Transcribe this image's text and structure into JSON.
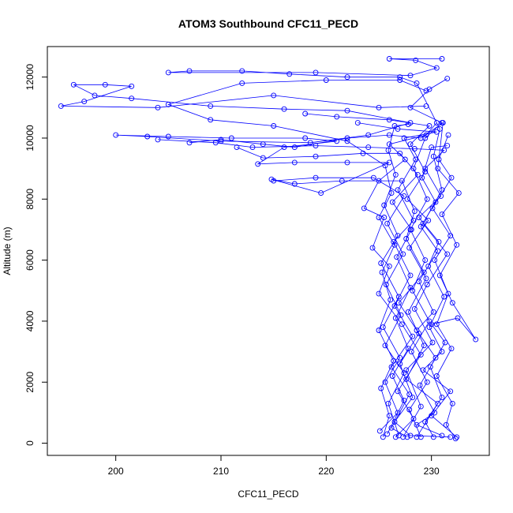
{
  "chart_data": {
    "type": "line",
    "title": "ATOM3 Southbound CFC11_PECD",
    "xlabel": "CFC11_PECD",
    "ylabel": "Altitude (m)",
    "xlim": [
      193.5,
      235.5
    ],
    "ylim": [
      -400,
      13000
    ],
    "xticks": [
      200,
      210,
      220,
      230
    ],
    "yticks": [
      0,
      2000,
      4000,
      6000,
      8000,
      10000,
      12000
    ],
    "grid": false,
    "legend": "none",
    "series_color": "#0000ff",
    "point_marker": "open-circle",
    "series": [
      {
        "values": [
          [
            231.8,
            200
          ],
          [
            228.0,
            250
          ],
          [
            226.5,
            700
          ],
          [
            228.2,
            1500
          ],
          [
            227.0,
            2600
          ],
          [
            228.8,
            3600
          ],
          [
            226.9,
            4600
          ],
          [
            229.3,
            5600
          ],
          [
            227.6,
            6700
          ],
          [
            228.4,
            7600
          ],
          [
            227.2,
            8600
          ],
          [
            221.5,
            8600
          ],
          [
            217.0,
            8500
          ],
          [
            214.8,
            8650
          ],
          [
            219.5,
            8200
          ],
          [
            226.0,
            9200
          ],
          [
            222.0,
            9200
          ],
          [
            217.0,
            9200
          ],
          [
            213.5,
            9150
          ],
          [
            216.0,
            9700
          ],
          [
            221.0,
            9900
          ],
          [
            218.0,
            10000
          ],
          [
            211.0,
            10000
          ],
          [
            205.0,
            10050
          ],
          [
            200.0,
            10100
          ],
          [
            203.0,
            10050
          ],
          [
            210.0,
            9900
          ],
          [
            218.5,
            9850
          ],
          [
            224.0,
            10100
          ],
          [
            228.0,
            10500
          ],
          [
            222.0,
            10900
          ],
          [
            216.0,
            10950
          ],
          [
            209.0,
            11050
          ],
          [
            201.5,
            11300
          ],
          [
            198.0,
            11400
          ],
          [
            196.0,
            11750
          ],
          [
            199.0,
            11750
          ],
          [
            201.5,
            11700
          ],
          [
            197.0,
            11200
          ],
          [
            194.8,
            11050
          ],
          [
            204.0,
            11000
          ],
          [
            215.0,
            11400
          ],
          [
            225.0,
            11000
          ],
          [
            229.5,
            11050
          ]
        ]
      },
      {
        "values": [
          [
            227.3,
            200
          ],
          [
            229.0,
            1200
          ],
          [
            227.6,
            2400
          ],
          [
            230.1,
            3300
          ],
          [
            228.4,
            4400
          ],
          [
            229.6,
            5200
          ],
          [
            231.5,
            6200
          ],
          [
            229.2,
            7200
          ],
          [
            231.0,
            8300
          ],
          [
            230.2,
            9400
          ],
          [
            230.8,
            10300
          ],
          [
            228.6,
            11800
          ],
          [
            227.0,
            12000
          ],
          [
            222.0,
            12000
          ],
          [
            216.5,
            12100
          ],
          [
            212.0,
            12200
          ],
          [
            207.0,
            12200
          ],
          [
            205.0,
            12150
          ],
          [
            219.0,
            12150
          ],
          [
            228.0,
            12050
          ],
          [
            230.5,
            12300
          ],
          [
            228.5,
            12550
          ],
          [
            226.0,
            12600
          ],
          [
            231.0,
            12600
          ]
        ]
      },
      {
        "values": [
          [
            225.4,
            200
          ],
          [
            226.0,
            900
          ],
          [
            225.2,
            1800
          ],
          [
            226.4,
            2700
          ],
          [
            225.0,
            3700
          ],
          [
            226.1,
            4700
          ],
          [
            225.3,
            5600
          ],
          [
            226.5,
            6500
          ],
          [
            225.0,
            7400
          ],
          [
            226.2,
            8200
          ],
          [
            225.6,
            9100
          ],
          [
            222.0,
            9900
          ],
          [
            215.0,
            10400
          ],
          [
            209.0,
            10600
          ],
          [
            205.0,
            11100
          ],
          [
            212.0,
            11800
          ],
          [
            220.0,
            11900
          ],
          [
            227.0,
            11900
          ],
          [
            229.5,
            11550
          ]
        ]
      },
      {
        "values": [
          [
            230.2,
            200
          ],
          [
            229.4,
            700
          ],
          [
            231.0,
            1500
          ],
          [
            229.9,
            2500
          ],
          [
            231.3,
            3300
          ],
          [
            230.0,
            3900
          ],
          [
            232.5,
            4100
          ],
          [
            234.2,
            3400
          ],
          [
            232.0,
            4600
          ],
          [
            230.8,
            5500
          ],
          [
            232.4,
            6500
          ],
          [
            231.0,
            7500
          ],
          [
            232.6,
            8200
          ],
          [
            230.6,
            9000
          ],
          [
            231.1,
            10500
          ],
          [
            229.0,
            10000
          ],
          [
            226.0,
            10100
          ],
          [
            222.0,
            10000
          ],
          [
            217.0,
            9700
          ],
          [
            214.0,
            9800
          ],
          [
            210.0,
            9950
          ],
          [
            207.0,
            9850
          ]
        ]
      },
      {
        "values": [
          [
            226.6,
            200
          ],
          [
            228.3,
            800
          ],
          [
            226.8,
            1700
          ],
          [
            229.0,
            2900
          ],
          [
            227.2,
            3900
          ],
          [
            225.0,
            4900
          ],
          [
            226.0,
            5800
          ],
          [
            224.4,
            6400
          ],
          [
            225.5,
            7400
          ],
          [
            223.6,
            7700
          ],
          [
            225.0,
            8600
          ],
          [
            227.5,
            9300
          ],
          [
            226.0,
            9800
          ],
          [
            229.5,
            10100
          ],
          [
            230.5,
            10500
          ]
        ]
      },
      {
        "values": [
          [
            232.4,
            200
          ],
          [
            230.0,
            900
          ],
          [
            231.8,
            1700
          ],
          [
            229.2,
            2400
          ],
          [
            231.0,
            3000
          ],
          [
            229.8,
            3800
          ],
          [
            231.2,
            4800
          ],
          [
            229.7,
            5800
          ],
          [
            230.7,
            6600
          ],
          [
            228.8,
            7400
          ],
          [
            230.9,
            8100
          ],
          [
            229.4,
            9000
          ],
          [
            231.2,
            9600
          ],
          [
            228.4,
            9650
          ],
          [
            224.0,
            9700
          ],
          [
            219.0,
            9750
          ],
          [
            213.0,
            9700
          ],
          [
            209.5,
            9850
          ],
          [
            204.0,
            9950
          ]
        ]
      },
      {
        "values": [
          [
            225.8,
            300
          ],
          [
            227.4,
            1400
          ],
          [
            226.3,
            2200
          ],
          [
            227.8,
            3100
          ],
          [
            226.6,
            4100
          ],
          [
            228.0,
            5100
          ],
          [
            226.7,
            6100
          ],
          [
            228.1,
            7000
          ],
          [
            226.3,
            7900
          ],
          [
            228.7,
            8800
          ],
          [
            227.0,
            9500
          ],
          [
            223.5,
            9500
          ],
          [
            219.0,
            9400
          ],
          [
            214.0,
            9350
          ],
          [
            211.5,
            9700
          ]
        ]
      },
      {
        "values": [
          [
            229.0,
            200
          ],
          [
            227.9,
            1100
          ],
          [
            229.6,
            2000
          ],
          [
            228.1,
            3000
          ],
          [
            229.8,
            4000
          ],
          [
            228.2,
            5000
          ],
          [
            229.4,
            6000
          ],
          [
            228.0,
            7000
          ],
          [
            229.6,
            8000
          ],
          [
            228.3,
            9000
          ],
          [
            229.4,
            10000
          ],
          [
            231.0,
            10500
          ],
          [
            228.0,
            11000
          ],
          [
            229.8,
            11600
          ],
          [
            231.5,
            11950
          ]
        ]
      },
      {
        "values": [
          [
            226.9,
            250
          ],
          [
            225.9,
            1300
          ],
          [
            227.4,
            2300
          ],
          [
            225.6,
            3200
          ],
          [
            227.1,
            4200
          ],
          [
            225.7,
            5200
          ],
          [
            227.3,
            6200
          ],
          [
            225.8,
            7200
          ],
          [
            227.4,
            8100
          ],
          [
            224.5,
            8700
          ],
          [
            219.0,
            8700
          ],
          [
            215.0,
            8600
          ]
        ]
      },
      {
        "values": [
          [
            231.0,
            250
          ],
          [
            228.6,
            600
          ],
          [
            230.3,
            1000
          ],
          [
            228.9,
            1900
          ],
          [
            230.4,
            2800
          ],
          [
            228.6,
            3700
          ],
          [
            230.2,
            4300
          ],
          [
            228.8,
            5300
          ],
          [
            230.6,
            6300
          ],
          [
            229.0,
            7100
          ],
          [
            230.4,
            7900
          ],
          [
            229.1,
            8700
          ],
          [
            230.0,
            9700
          ],
          [
            231.5,
            9750
          ]
        ]
      },
      {
        "values": [
          [
            227.7,
            200
          ],
          [
            226.2,
            500
          ],
          [
            227.9,
            1600
          ],
          [
            226.2,
            2500
          ],
          [
            228.2,
            3500
          ],
          [
            226.5,
            4500
          ],
          [
            228.0,
            5500
          ],
          [
            226.4,
            6600
          ],
          [
            228.3,
            7300
          ],
          [
            226.8,
            8300
          ],
          [
            228.5,
            9300
          ],
          [
            227.4,
            10000
          ],
          [
            230.5,
            10200
          ],
          [
            226.8,
            10300
          ],
          [
            223.0,
            10500
          ]
        ]
      },
      {
        "values": [
          [
            228.6,
            200
          ],
          [
            230.6,
            1300
          ],
          [
            227.6,
            2100
          ],
          [
            229.3,
            3200
          ],
          [
            227.8,
            4300
          ],
          [
            229.5,
            5400
          ],
          [
            227.9,
            6400
          ],
          [
            229.7,
            7300
          ],
          [
            227.7,
            8000
          ],
          [
            229.4,
            8900
          ],
          [
            228.0,
            9800
          ],
          [
            229.8,
            10400
          ],
          [
            226.0,
            10600
          ],
          [
            221.0,
            10700
          ],
          [
            218.0,
            10800
          ]
        ]
      },
      {
        "values": [
          [
            225.1,
            400
          ],
          [
            226.8,
            1000
          ],
          [
            225.6,
            2000
          ],
          [
            227.0,
            2800
          ],
          [
            225.4,
            3800
          ],
          [
            226.9,
            4800
          ],
          [
            225.2,
            5900
          ],
          [
            226.8,
            6800
          ],
          [
            225.5,
            7800
          ],
          [
            226.6,
            8800
          ],
          [
            225.9,
            9600
          ],
          [
            226.5,
            10400
          ],
          [
            227.8,
            10450
          ]
        ]
      },
      {
        "values": [
          [
            232.3,
            150
          ],
          [
            231.4,
            600
          ],
          [
            232.0,
            1300
          ],
          [
            230.5,
            2200
          ],
          [
            231.9,
            3100
          ],
          [
            230.5,
            3900
          ],
          [
            231.6,
            4900
          ],
          [
            230.3,
            6000
          ],
          [
            231.8,
            6800
          ],
          [
            230.1,
            7700
          ],
          [
            231.9,
            8700
          ],
          [
            230.7,
            9300
          ],
          [
            231.6,
            10100
          ]
        ]
      }
    ]
  }
}
